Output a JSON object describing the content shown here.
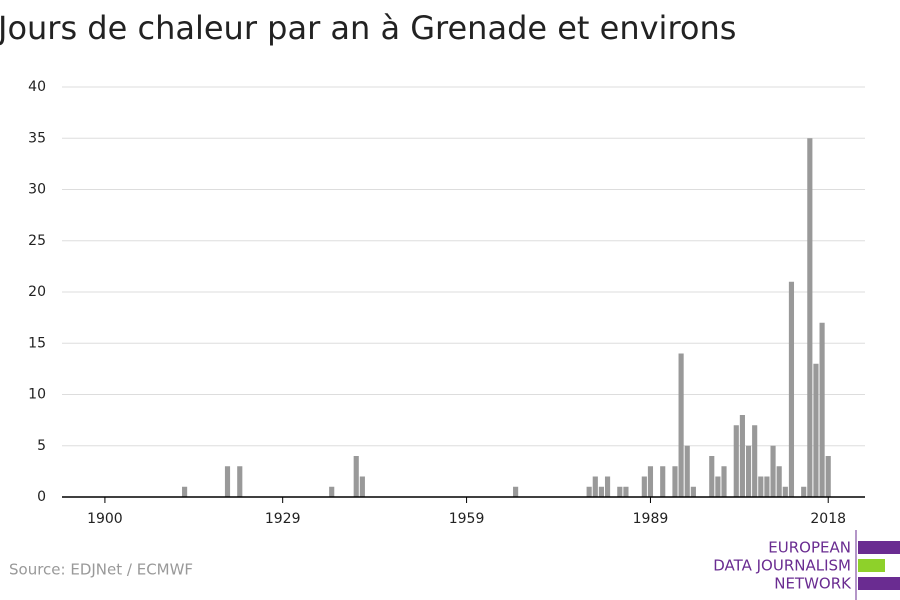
{
  "chart_data": {
    "type": "bar",
    "title": "Jours de chaleur par an à Grenade et environs",
    "x": [
      1913,
      1920,
      1922,
      1937,
      1941,
      1942,
      1967,
      1979,
      1980,
      1981,
      1982,
      1984,
      1985,
      1988,
      1989,
      1991,
      1993,
      1994,
      1995,
      1996,
      1999,
      2000,
      2001,
      2003,
      2004,
      2005,
      2006,
      2007,
      2008,
      2009,
      2010,
      2011,
      2012,
      2014,
      2015,
      2016,
      2017,
      2018
    ],
    "values": [
      1,
      3,
      3,
      1,
      4,
      2,
      1,
      1,
      2,
      1,
      2,
      1,
      1,
      2,
      3,
      3,
      3,
      14,
      5,
      1,
      4,
      2,
      3,
      7,
      8,
      5,
      7,
      2,
      2,
      5,
      3,
      1,
      21,
      1,
      35,
      13,
      17,
      4
    ],
    "color": "#999999",
    "xlim": [
      1893,
      2024
    ],
    "xticks": [
      1900,
      1929,
      1959,
      1989,
      2018
    ],
    "ylim": [
      0,
      40
    ],
    "yticks": [
      0,
      5,
      10,
      15,
      20,
      25,
      30,
      35,
      40
    ],
    "grid": true,
    "source": "Source: EDJNet / ECMWF"
  },
  "logo": {
    "lines": [
      "EUROPEAN",
      "DATA JOURNALISM",
      "NETWORK"
    ]
  }
}
